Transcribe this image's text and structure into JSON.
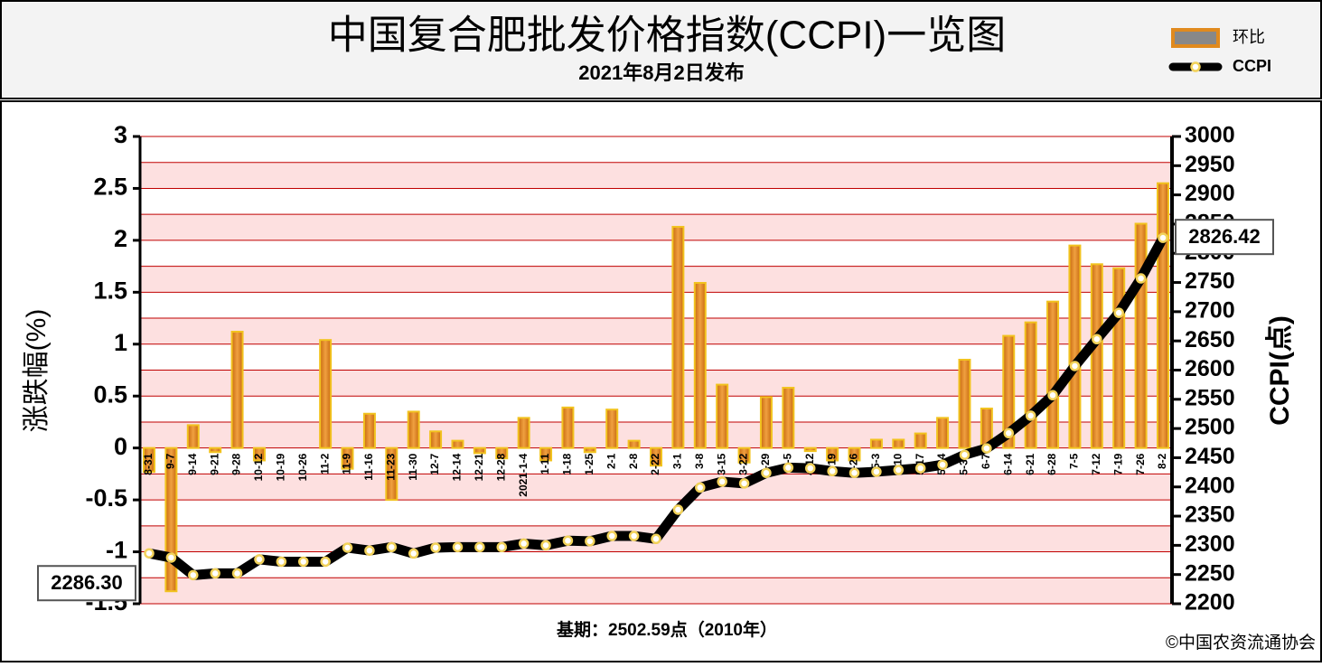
{
  "chart_data": {
    "type": "combo",
    "title": "中国复合肥批发价格指数(CCPI)一览图",
    "subtitle": "2021年8月2日发布",
    "y_label": "涨跌幅(%)",
    "y2_label": "CCPI(点)",
    "note": "基期：2502.59点（2010年）",
    "source": "©中国农资流通协会",
    "categories": [
      "8-31",
      "9-7",
      "9-14",
      "9-21",
      "9-28",
      "10-12",
      "10-19",
      "10-26",
      "11-2",
      "11-9",
      "11-16",
      "11-23",
      "11-30",
      "12-7",
      "12-14",
      "12-21",
      "12-28",
      "2021-1-4",
      "1-11",
      "1-18",
      "1-25",
      "2-1",
      "2-8",
      "2-22",
      "3-1",
      "3-8",
      "3-15",
      "3-22",
      "3-29",
      "4-5",
      "4-12",
      "4-19",
      "4-26",
      "5-3",
      "5-10",
      "5-17",
      "5-24",
      "5-31",
      "6-7",
      "6-14",
      "6-21",
      "6-28",
      "7-5",
      "7-12",
      "7-19",
      "7-26",
      "8-2"
    ],
    "series": [
      {
        "name": "环比",
        "type": "bar",
        "color": "#e08a1e",
        "edge": "#f2c31f",
        "values": [
          -0.23,
          -1.38,
          0.22,
          -0.04,
          1.12,
          -0.12,
          0,
          0,
          1.04,
          -0.2,
          0.33,
          -0.5,
          0.35,
          0.16,
          0.07,
          -0.05,
          -0.1,
          0.29,
          -0.12,
          0.39,
          -0.04,
          0.37,
          0.07,
          -0.17,
          2.13,
          1.59,
          0.61,
          -0.14,
          0.49,
          0.58,
          -0.03,
          -0.12,
          -0.12,
          0.08,
          0.08,
          0.14,
          0.29,
          0.85,
          0.38,
          1.08,
          1.21,
          1.41,
          1.95,
          1.77,
          1.73,
          2.16,
          2.55
        ]
      },
      {
        "name": "CCPI",
        "type": "line",
        "axis": "y2",
        "color": "#000000",
        "marker": "#f2d25a",
        "values": [
          2286.3,
          2279,
          2249,
          2252,
          2252,
          2276,
          2272,
          2272,
          2272,
          2296,
          2291,
          2297,
          2286,
          2296,
          2297,
          2297,
          2297,
          2303,
          2300,
          2308,
          2307,
          2316,
          2316,
          2311,
          2361,
          2399,
          2409,
          2406,
          2424,
          2433,
          2432,
          2427,
          2424,
          2426,
          2429,
          2432,
          2438,
          2455,
          2466,
          2492,
          2522,
          2557,
          2607,
          2653,
          2698,
          2757,
          2826.42
        ],
        "value_labels": [
          "2286.30",
          null,
          null,
          null,
          null,
          null,
          null,
          null,
          null,
          null,
          null,
          null,
          null,
          null,
          null,
          null,
          null,
          null,
          null,
          null,
          null,
          null,
          null,
          null,
          null,
          null,
          null,
          null,
          null,
          null,
          null,
          null,
          null,
          null,
          null,
          null,
          null,
          null,
          null,
          null,
          null,
          null,
          null,
          null,
          null,
          null,
          "2826.42"
        ]
      }
    ],
    "ylim": [
      -1.5,
      3
    ],
    "yticks": [
      -1.5,
      -1,
      -0.5,
      0,
      0.5,
      1,
      1.5,
      2,
      2.5,
      3
    ],
    "yminorticks": [
      -1.25,
      -0.75,
      -0.25,
      0.25,
      0.75,
      1.25,
      1.75,
      2.25,
      2.75
    ],
    "y2lim": [
      2200,
      3000
    ],
    "y2ticks": [
      2200,
      2250,
      2300,
      2350,
      2400,
      2450,
      2500,
      2550,
      2600,
      2650,
      2700,
      2750,
      2800,
      2850,
      2900,
      2950,
      3000
    ],
    "grid": true,
    "grid_color": "#c00000",
    "legend": "top-right"
  }
}
